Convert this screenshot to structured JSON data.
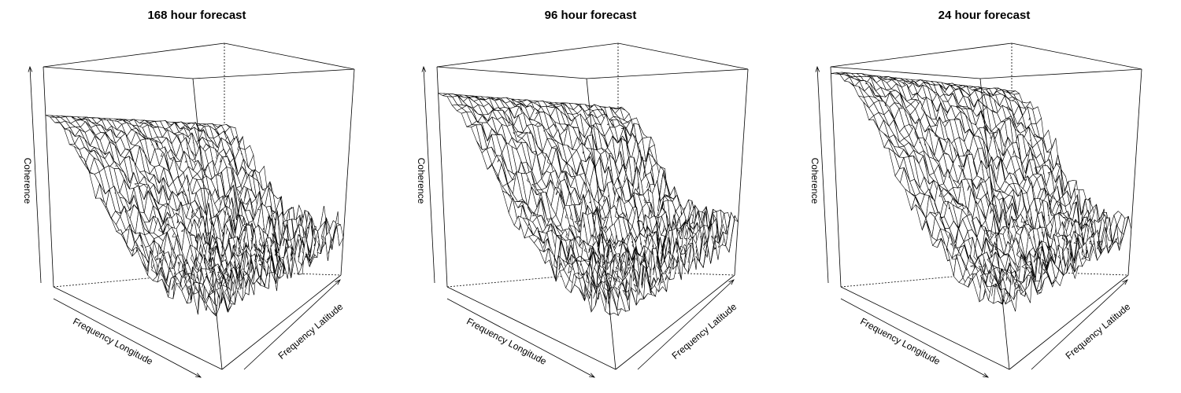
{
  "panels": [
    {
      "title": "168 hour forecast",
      "z_label": "Coherence",
      "x_label": "Frequency Longitude",
      "y_label": "Frequency Latitude"
    },
    {
      "title": "96 hour forecast",
      "z_label": "Coherence",
      "x_label": "Frequency Longitude",
      "y_label": "Frequency Latitude"
    },
    {
      "title": "24 hour forecast",
      "z_label": "Coherence",
      "x_label": "Frequency Longitude",
      "y_label": "Frequency Latitude"
    }
  ]
}
